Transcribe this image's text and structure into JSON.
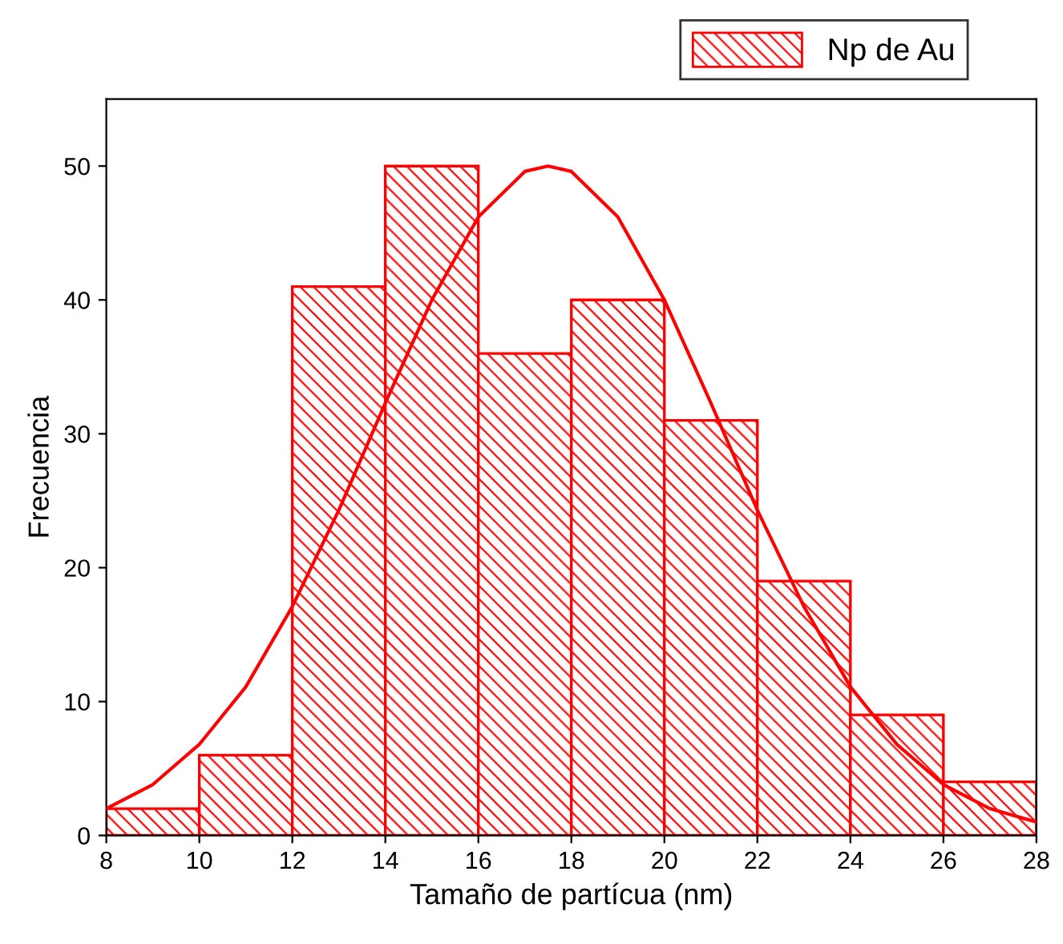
{
  "chart_data": {
    "type": "histogram",
    "xlabel": "Tamaño de partícua (nm)",
    "ylabel": "Frecuencia",
    "bins": [
      8,
      10,
      12,
      14,
      16,
      18,
      20,
      22,
      24,
      26,
      28
    ],
    "series": [
      {
        "type": "histogram",
        "name": "Np de Au",
        "color": "#ff0000",
        "values": [
          2,
          6,
          41,
          50,
          36,
          40,
          31,
          19,
          9,
          4
        ]
      },
      {
        "type": "line",
        "color": "#ff0000",
        "x": [
          8,
          9,
          10,
          11,
          12,
          13,
          14,
          15,
          16,
          17,
          17.5,
          18,
          19,
          20,
          21,
          22,
          23,
          24,
          25,
          26,
          27,
          28
        ],
        "values": [
          2.0,
          3.8,
          6.8,
          11.1,
          17.1,
          24.3,
          32.3,
          40.0,
          46.2,
          49.6,
          50,
          49.6,
          46.2,
          40.0,
          32.3,
          24.3,
          17.1,
          11.1,
          6.8,
          3.8,
          2.0,
          1.0
        ]
      }
    ],
    "xlim": [
      8,
      28
    ],
    "xticks": [
      8,
      10,
      12,
      14,
      16,
      18,
      20,
      22,
      24,
      26,
      28
    ],
    "ylim": [
      0,
      55
    ],
    "yticks": [
      0,
      10,
      20,
      30,
      40,
      50
    ],
    "grid": false,
    "legend": "top right",
    "line_style": "solid",
    "marker": "none"
  }
}
